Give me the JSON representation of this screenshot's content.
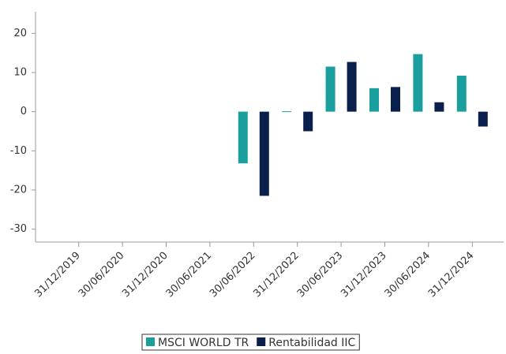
{
  "chart_data": {
    "type": "bar",
    "categories": [
      "31/12/2019",
      "30/06/2020",
      "31/12/2020",
      "30/06/2021",
      "30/06/2022",
      "31/12/2022",
      "30/06/2023",
      "31/12/2023",
      "30/06/2024",
      "31/12/2024"
    ],
    "series": [
      {
        "name": "MSCI WORLD TR",
        "color": "#1a9e9e",
        "values": [
          null,
          null,
          null,
          null,
          -13.2,
          0.1,
          11.5,
          6,
          14.7,
          9.2
        ]
      },
      {
        "name": "Rentabilidad IIC",
        "color": "#0b1f4d",
        "values": [
          null,
          null,
          null,
          null,
          -21.5,
          -5,
          12.7,
          6.3,
          2.4,
          -3.8
        ]
      }
    ],
    "ylim": [
      -33.3,
      25.5
    ],
    "yticks": [
      -30,
      -20,
      -10,
      0,
      10,
      20
    ],
    "grid": false,
    "legend": "bottom"
  }
}
